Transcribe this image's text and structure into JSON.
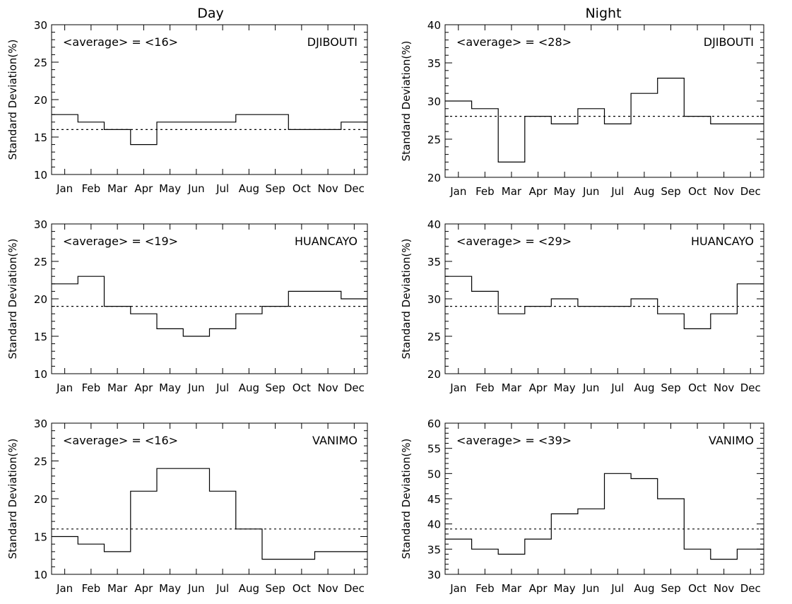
{
  "columns": [
    {
      "title": "Day"
    },
    {
      "title": "Night"
    }
  ],
  "chart_data": [
    {
      "type": "line",
      "step": true,
      "station": "DJIBOUTI",
      "average_label": "<average> = <16>",
      "average": 16,
      "x": [
        "Jan",
        "Feb",
        "Mar",
        "Apr",
        "May",
        "Jun",
        "Jul",
        "Aug",
        "Sep",
        "Oct",
        "Nov",
        "Dec"
      ],
      "values": [
        18,
        17,
        16,
        14,
        17,
        17,
        17,
        18,
        18,
        16,
        16,
        17
      ],
      "ylabel": "Standard Deviation(%)",
      "ylim": [
        10,
        30
      ],
      "yticks": [
        10,
        15,
        20,
        25,
        30
      ]
    },
    {
      "type": "line",
      "step": true,
      "station": "DJIBOUTI",
      "average_label": "<average> = <28>",
      "average": 28,
      "x": [
        "Jan",
        "Feb",
        "Mar",
        "Apr",
        "May",
        "Jun",
        "Jul",
        "Aug",
        "Sep",
        "Oct",
        "Nov",
        "Dec"
      ],
      "values": [
        30,
        29,
        22,
        28,
        27,
        29,
        27,
        31,
        33,
        28,
        27,
        27
      ],
      "ylabel": "Standard Deviation(%)",
      "ylim": [
        20,
        40
      ],
      "yticks": [
        20,
        25,
        30,
        35,
        40
      ]
    },
    {
      "type": "line",
      "step": true,
      "station": "HUANCAYO",
      "average_label": "<average> = <19>",
      "average": 19,
      "x": [
        "Jan",
        "Feb",
        "Mar",
        "Apr",
        "May",
        "Jun",
        "Jul",
        "Aug",
        "Sep",
        "Oct",
        "Nov",
        "Dec"
      ],
      "values": [
        22,
        23,
        19,
        18,
        16,
        15,
        16,
        18,
        19,
        21,
        21,
        20
      ],
      "ylabel": "Standard Deviation(%)",
      "ylim": [
        10,
        30
      ],
      "yticks": [
        10,
        15,
        20,
        25,
        30
      ]
    },
    {
      "type": "line",
      "step": true,
      "station": "HUANCAYO",
      "average_label": "<average> = <29>",
      "average": 29,
      "x": [
        "Jan",
        "Feb",
        "Mar",
        "Apr",
        "May",
        "Jun",
        "Jul",
        "Aug",
        "Sep",
        "Oct",
        "Nov",
        "Dec"
      ],
      "values": [
        33,
        31,
        28,
        29,
        30,
        29,
        29,
        30,
        28,
        26,
        28,
        32
      ],
      "ylabel": "Standard Deviation(%)",
      "ylim": [
        20,
        40
      ],
      "yticks": [
        20,
        25,
        30,
        35,
        40
      ]
    },
    {
      "type": "line",
      "step": true,
      "station": "VANIMO",
      "average_label": "<average> = <16>",
      "average": 16,
      "x": [
        "Jan",
        "Feb",
        "Mar",
        "Apr",
        "May",
        "Jun",
        "Jul",
        "Aug",
        "Sep",
        "Oct",
        "Nov",
        "Dec"
      ],
      "values": [
        15,
        14,
        13,
        21,
        24,
        24,
        21,
        16,
        12,
        12,
        13,
        13
      ],
      "ylabel": "Standard Deviation(%)",
      "ylim": [
        10,
        30
      ],
      "yticks": [
        10,
        15,
        20,
        25,
        30
      ]
    },
    {
      "type": "line",
      "step": true,
      "station": "VANIMO",
      "average_label": "<average> = <39>",
      "average": 39,
      "x": [
        "Jan",
        "Feb",
        "Mar",
        "Apr",
        "May",
        "Jun",
        "Jul",
        "Aug",
        "Sep",
        "Oct",
        "Nov",
        "Dec"
      ],
      "values": [
        37,
        35,
        34,
        37,
        42,
        43,
        50,
        49,
        45,
        35,
        33,
        35
      ],
      "ylabel": "Standard Deviation(%)",
      "ylim": [
        30,
        60
      ],
      "yticks": [
        30,
        35,
        40,
        45,
        50,
        55,
        60
      ]
    }
  ]
}
